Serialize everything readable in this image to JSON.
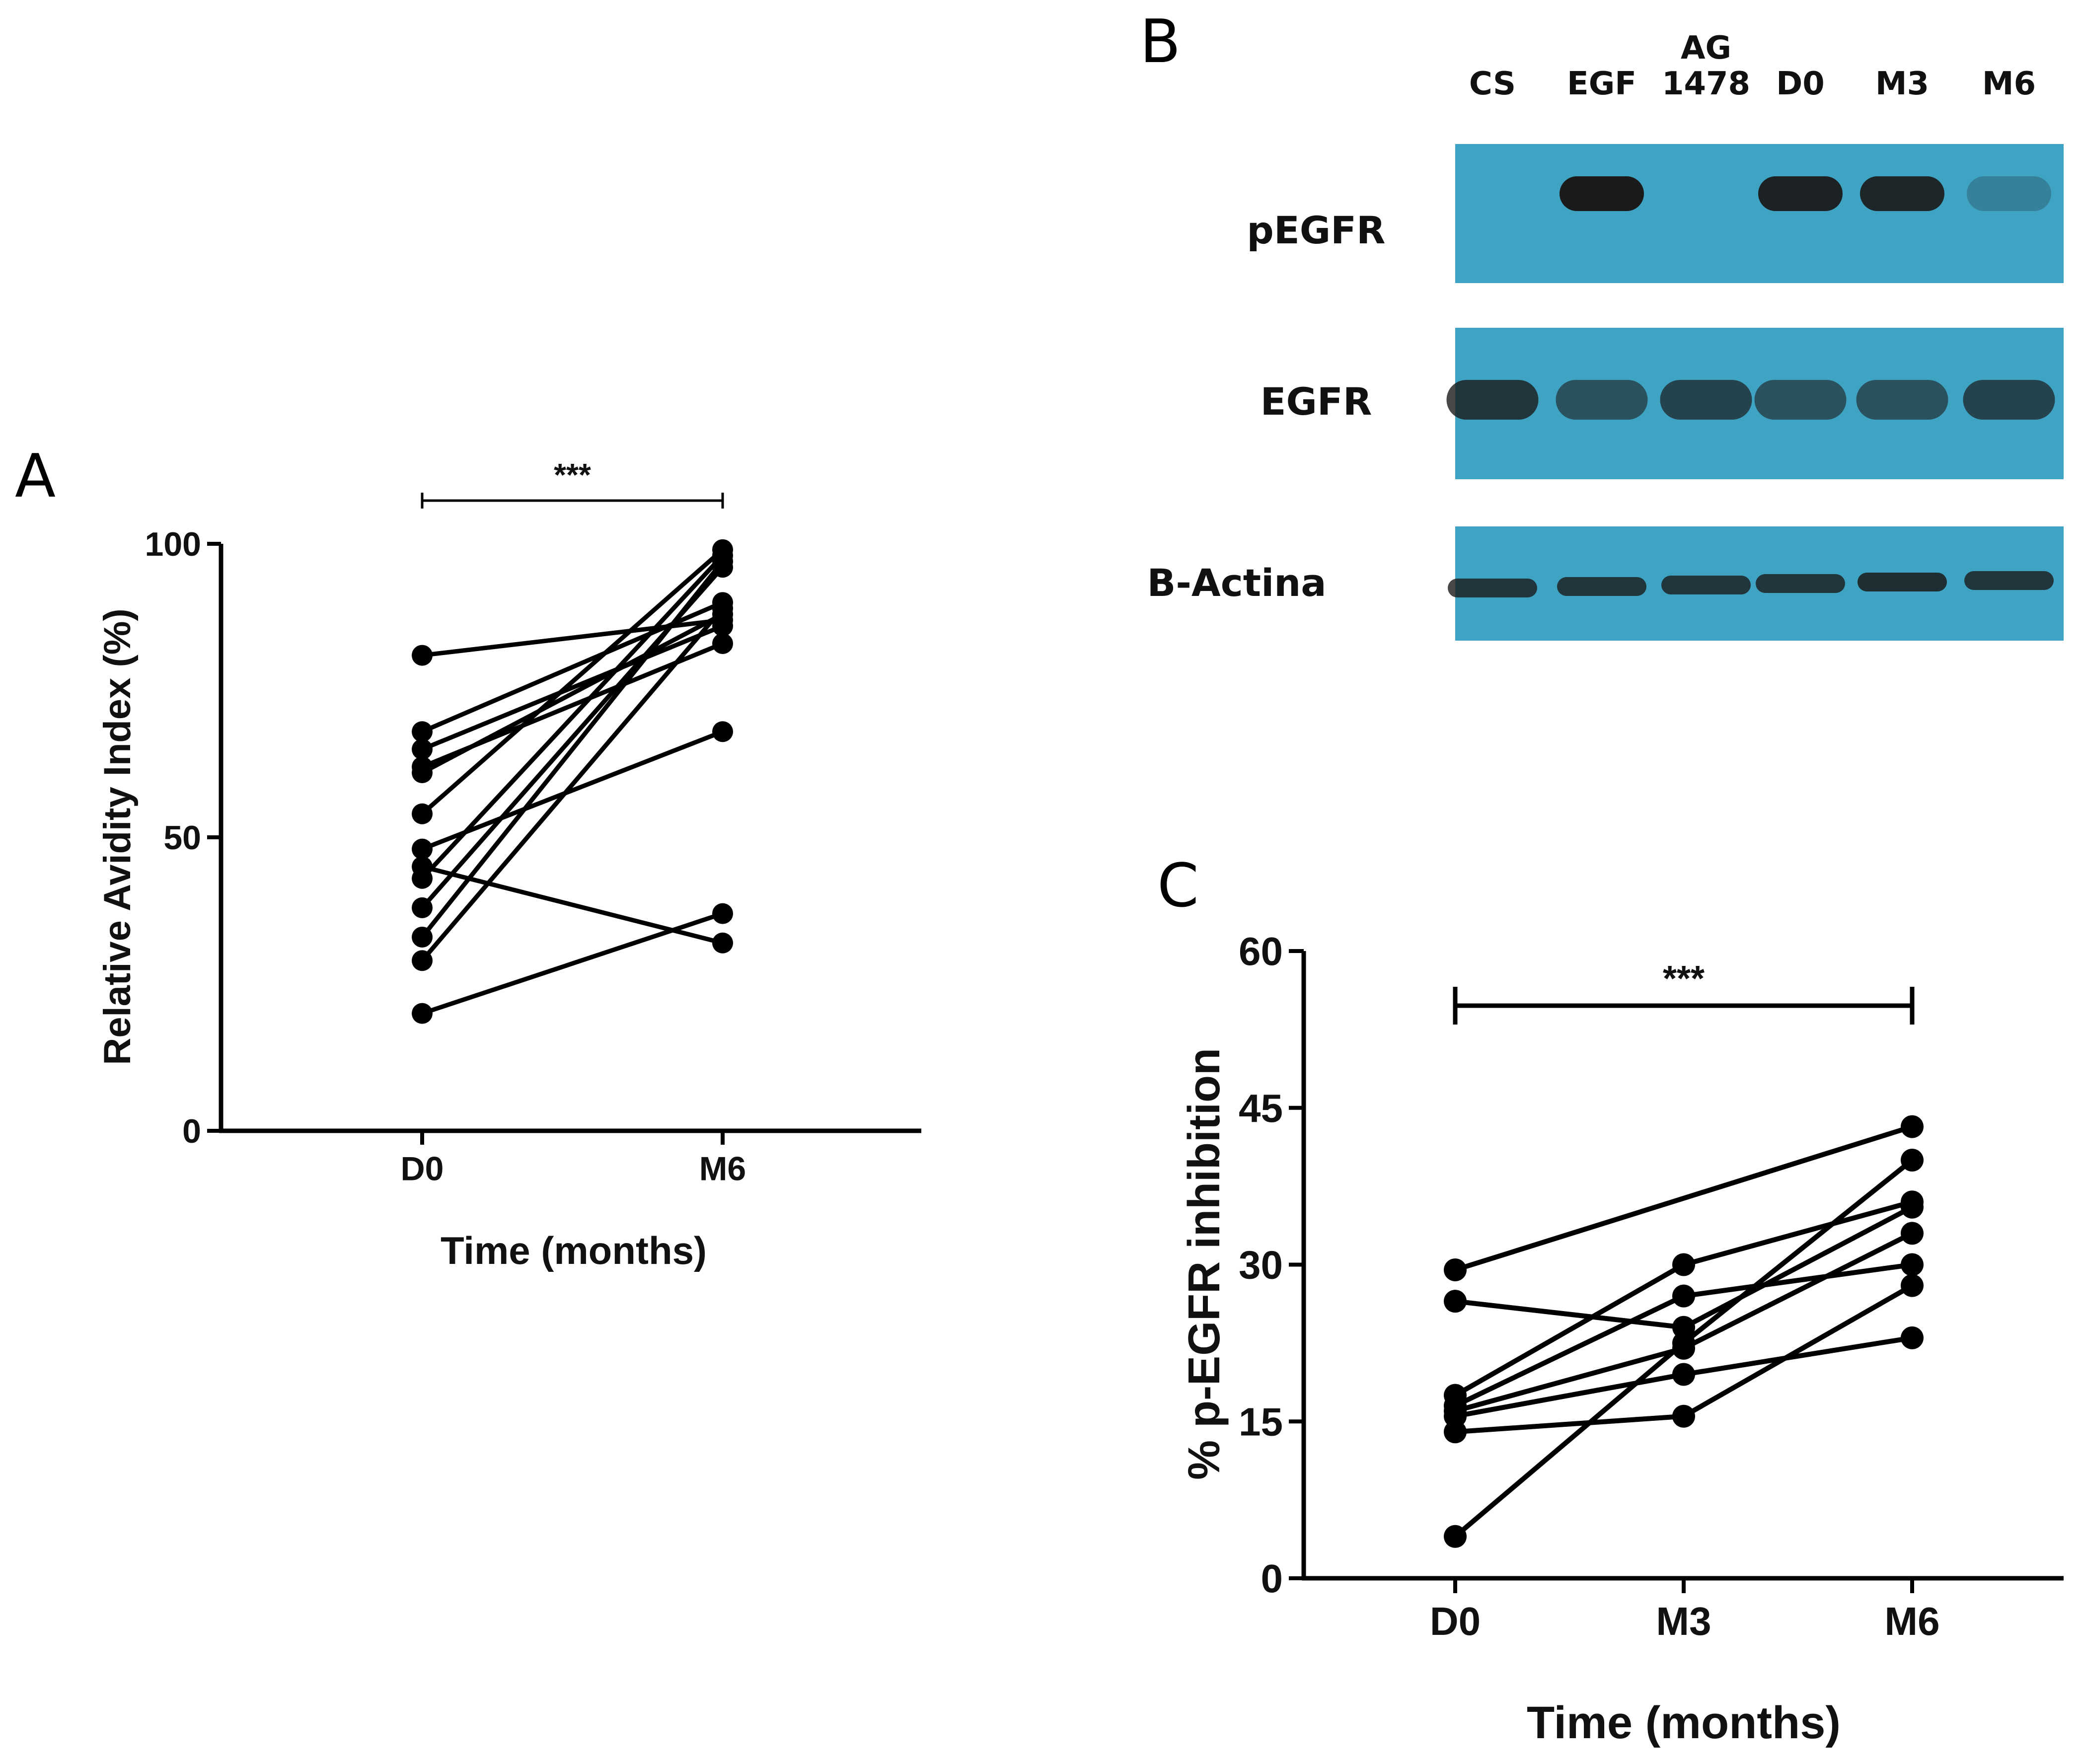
{
  "panels": {
    "A": {
      "letter": "A"
    },
    "B": {
      "letter": "B"
    },
    "C": {
      "letter": "C"
    }
  },
  "chart_data": [
    {
      "id": "A",
      "type": "line",
      "xlabel": "Time (months)",
      "ylabel": "Relative Avidity Index (%)",
      "categories": [
        "D0",
        "M6"
      ],
      "ylim": [
        0,
        100
      ],
      "yticks": [
        0,
        50,
        100
      ],
      "significance": {
        "label": "***",
        "from": "D0",
        "to": "M6"
      },
      "series": [
        {
          "values": [
            81,
            87
          ]
        },
        {
          "values": [
            68,
            90
          ]
        },
        {
          "values": [
            65,
            86
          ]
        },
        {
          "values": [
            62,
            83
          ]
        },
        {
          "values": [
            61,
            88
          ]
        },
        {
          "values": [
            54,
            99
          ]
        },
        {
          "values": [
            48,
            68
          ]
        },
        {
          "values": [
            45,
            32
          ]
        },
        {
          "values": [
            43,
            98
          ]
        },
        {
          "values": [
            38,
            96
          ]
        },
        {
          "values": [
            33,
            97
          ]
        },
        {
          "values": [
            29,
            89
          ]
        },
        {
          "values": [
            20,
            37
          ]
        }
      ]
    },
    {
      "id": "C",
      "type": "line",
      "xlabel": "Time (months)",
      "ylabel": "% p-EGFR inhibition",
      "categories": [
        "D0",
        "M3",
        "M6"
      ],
      "ylim": [
        0,
        60
      ],
      "yticks": [
        0,
        15,
        30,
        45,
        60
      ],
      "significance": {
        "label": "***",
        "from": "D0",
        "to": "M6"
      },
      "series": [
        {
          "values": [
            29.5,
            null,
            43.2
          ]
        },
        {
          "values": [
            26.5,
            24,
            35.5
          ]
        },
        {
          "values": [
            17.5,
            30,
            36
          ]
        },
        {
          "values": [
            16.5,
            27,
            30
          ]
        },
        {
          "values": [
            16,
            22,
            33
          ]
        },
        {
          "values": [
            15.5,
            19.5,
            23
          ]
        },
        {
          "values": [
            14,
            15.5,
            28
          ]
        },
        {
          "values": [
            4,
            22.5,
            40
          ]
        }
      ]
    }
  ],
  "blot": {
    "lanes": [
      {
        "label_lines": [
          "CS"
        ]
      },
      {
        "label_lines": [
          "EGF"
        ]
      },
      {
        "label_lines": [
          "AG",
          "1478"
        ]
      },
      {
        "label_lines": [
          "D0"
        ]
      },
      {
        "label_lines": [
          "M3"
        ]
      },
      {
        "label_lines": [
          "M6"
        ]
      }
    ],
    "rows": [
      {
        "label": "pEGFR",
        "band_intensity": [
          0,
          1,
          0,
          0.95,
          0.9,
          0.25
        ]
      },
      {
        "label": "EGFR",
        "band_intensity": [
          0.8,
          0.6,
          0.7,
          0.6,
          0.6,
          0.7
        ]
      },
      {
        "label": "B-Actina",
        "band_intensity": [
          0.8,
          0.8,
          0.8,
          0.8,
          0.85,
          0.8
        ]
      }
    ],
    "colors": {
      "membrane": "#3fa3c4",
      "band": "#1a1a1a"
    }
  }
}
